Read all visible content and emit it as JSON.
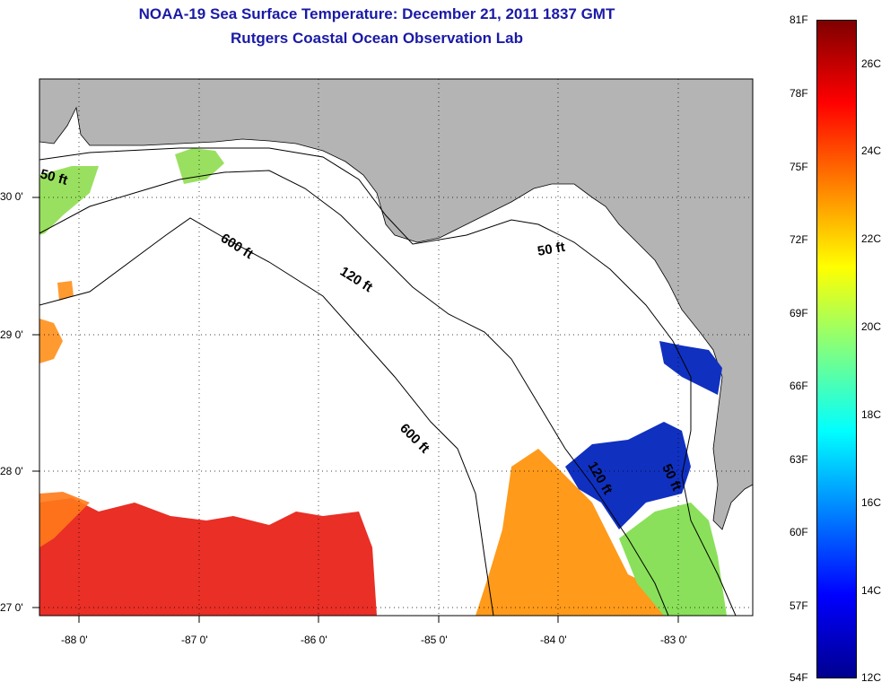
{
  "title": {
    "line1": "NOAA-19 Sea Surface Temperature:  December 21, 2011 1837 GMT",
    "line2": "Rutgers Coastal Ocean Observation Lab"
  },
  "map": {
    "lon_ticks": [
      "-88 0'",
      "-87 0'",
      "-86 0'",
      "-85 0'",
      "-84 0'",
      "-83 0'"
    ],
    "lat_ticks": [
      "30 0'",
      "29 0'",
      "28 0'",
      "27 0'"
    ],
    "contours": [
      {
        "label": "50 ft",
        "where": "northwest"
      },
      {
        "label": "600 ft",
        "where": "upper slope"
      },
      {
        "label": "120 ft",
        "where": "mid shelf"
      },
      {
        "label": "50 ft",
        "where": "big bend"
      },
      {
        "label": "600 ft",
        "where": "lower slope"
      },
      {
        "label": "120 ft",
        "where": "southeast shelf"
      },
      {
        "label": "50 ft",
        "where": "southeast coast"
      }
    ],
    "colors": {
      "land": "#b4b4b4",
      "cloud": "#ffffff",
      "frame": "#000000"
    }
  },
  "colorbar": {
    "f_labels": [
      "81F",
      "78F",
      "75F",
      "72F",
      "69F",
      "66F",
      "63F",
      "60F",
      "57F",
      "54F"
    ],
    "c_labels": [
      "26C",
      "24C",
      "22C",
      "20C",
      "18C",
      "16C",
      "14C",
      "12C"
    ],
    "colors": [
      "#7f0000",
      "#ff0000",
      "#ff8000",
      "#ffff00",
      "#80ff80",
      "#00ffff",
      "#0080ff",
      "#0000ff",
      "#00008f"
    ]
  }
}
